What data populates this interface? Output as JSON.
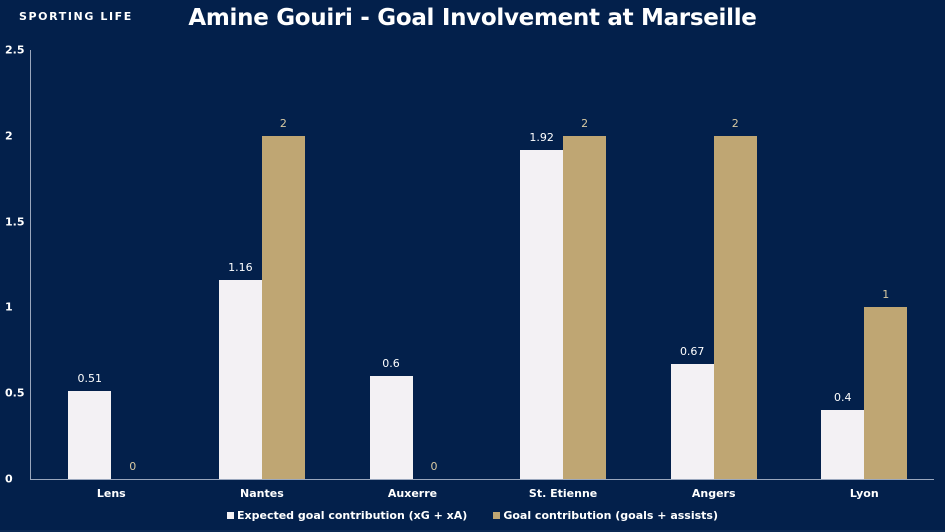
{
  "brand": "SPORTING LIFE",
  "colors": {
    "background": "#03204b",
    "xg": "#f3f1f4",
    "goals": "#bfa673"
  },
  "chart_data": {
    "type": "bar",
    "title": "Amine Gouiri - Goal Involvement at Marseille",
    "xlabel": "",
    "ylabel": "",
    "ylim": [
      0,
      2.5
    ],
    "yticks": [
      "0",
      "0.5",
      "1",
      "1.5",
      "2",
      "2.5"
    ],
    "grid": false,
    "legend_position": "bottom",
    "categories": [
      "Lens",
      "Nantes",
      "Auxerre",
      "St. Etienne",
      "Angers",
      "Lyon"
    ],
    "series": [
      {
        "name": "Expected goal contribution (xG + xA)",
        "values": [
          0.51,
          1.16,
          0.6,
          1.92,
          0.67,
          0.4
        ],
        "labels": [
          "0.51",
          "1.16",
          "0.6",
          "1.92",
          "0.67",
          "0.4"
        ]
      },
      {
        "name": "Goal contribution (goals + assists)",
        "values": [
          0,
          2,
          0,
          2,
          2,
          1
        ],
        "labels": [
          "0",
          "2",
          "0",
          "2",
          "2",
          "1"
        ]
      }
    ]
  }
}
